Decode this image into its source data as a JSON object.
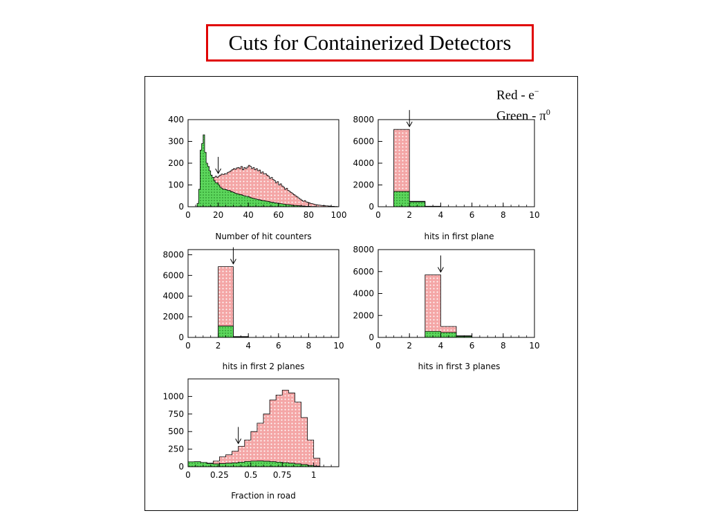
{
  "title": "Cuts for Containerized Detectors",
  "legend": {
    "red_label": "Red - e",
    "red_sup": "−",
    "green_label": "Green - π",
    "green_sup": "0"
  },
  "colors": {
    "red_fill": "#f4a6a6",
    "green_fill": "#5cd65c",
    "title_border": "#e00000"
  },
  "chart_data": [
    {
      "type": "bar",
      "xlabel": "Number of hit counters",
      "xlim": [
        0,
        100
      ],
      "ylim": [
        0,
        400
      ],
      "xticks": [
        0,
        20,
        40,
        60,
        80,
        100
      ],
      "yticks": [
        0,
        100,
        200,
        300,
        400
      ],
      "cut": 20,
      "bin_edges_start": 0,
      "bin_width": 1,
      "series": [
        {
          "color": "red",
          "values": [
            0,
            0,
            0,
            0,
            0,
            0,
            5,
            25,
            70,
            125,
            150,
            155,
            150,
            140,
            135,
            130,
            125,
            135,
            140,
            135,
            140,
            145,
            150,
            148,
            152,
            150,
            158,
            160,
            165,
            170,
            175,
            172,
            178,
            180,
            175,
            185,
            170,
            180,
            175,
            182,
            190,
            185,
            175,
            180,
            170,
            175,
            165,
            168,
            155,
            160,
            150,
            152,
            145,
            140,
            130,
            135,
            125,
            120,
            110,
            115,
            100,
            105,
            95,
            90,
            80,
            85,
            75,
            70,
            65,
            60,
            55,
            50,
            45,
            40,
            35,
            30,
            25,
            28,
            22,
            20,
            18,
            15,
            14,
            12,
            10,
            9,
            8,
            7,
            6,
            5,
            5,
            4,
            4,
            3,
            3,
            2,
            2,
            1,
            1,
            0
          ]
        },
        {
          "color": "green",
          "values": [
            0,
            0,
            0,
            0,
            0,
            0,
            15,
            80,
            260,
            290,
            330,
            250,
            200,
            185,
            165,
            145,
            135,
            120,
            110,
            110,
            100,
            90,
            85,
            80,
            80,
            78,
            75,
            75,
            70,
            68,
            65,
            62,
            60,
            58,
            56,
            55,
            52,
            50,
            48,
            48,
            45,
            42,
            40,
            38,
            36,
            35,
            33,
            32,
            30,
            28,
            28,
            26,
            25,
            24,
            22,
            20,
            20,
            18,
            17,
            16,
            15,
            14,
            13,
            12,
            11,
            10,
            10,
            9,
            8,
            7,
            6,
            6,
            5,
            5,
            4,
            4,
            3,
            3,
            2,
            2,
            2,
            1,
            1,
            1,
            1,
            0,
            0,
            0,
            0,
            0,
            0,
            0,
            0,
            0,
            0,
            0,
            0,
            0,
            0,
            0
          ]
        }
      ]
    },
    {
      "type": "bar",
      "xlabel": "hits in first plane",
      "xlim": [
        0,
        10
      ],
      "ylim": [
        0,
        8000
      ],
      "xticks": [
        0,
        2,
        4,
        6,
        8,
        10
      ],
      "yticks": [
        0,
        2000,
        4000,
        6000,
        8000
      ],
      "cut": 2,
      "bin_edges_start": 0,
      "bin_width": 1,
      "series": [
        {
          "color": "red",
          "values": [
            0,
            7100,
            500,
            50,
            0,
            0,
            0,
            0,
            0,
            0
          ]
        },
        {
          "color": "green",
          "values": [
            0,
            1400,
            450,
            40,
            0,
            0,
            0,
            0,
            0,
            0
          ]
        }
      ]
    },
    {
      "type": "bar",
      "xlabel": "hits in first 2 planes",
      "xlim": [
        0,
        10
      ],
      "ylim": [
        0,
        8500
      ],
      "xticks": [
        0,
        2,
        4,
        6,
        8,
        10
      ],
      "yticks": [
        0,
        2000,
        4000,
        6000,
        8000
      ],
      "cut": 3,
      "bin_edges_start": 0,
      "bin_width": 1,
      "series": [
        {
          "color": "red",
          "values": [
            0,
            0,
            6850,
            80,
            0,
            0,
            0,
            0,
            0,
            0
          ]
        },
        {
          "color": "green",
          "values": [
            0,
            0,
            1100,
            60,
            0,
            0,
            0,
            0,
            0,
            0
          ]
        }
      ]
    },
    {
      "type": "bar",
      "xlabel": "hits in first 3 planes",
      "xlim": [
        0,
        10
      ],
      "ylim": [
        0,
        8000
      ],
      "xticks": [
        0,
        2,
        4,
        6,
        8,
        10
      ],
      "yticks": [
        0,
        2000,
        4000,
        6000,
        8000
      ],
      "cut": 4,
      "bin_edges_start": 0,
      "bin_width": 1,
      "series": [
        {
          "color": "red",
          "values": [
            0,
            0,
            0,
            5700,
            1000,
            150,
            0,
            0,
            0,
            0
          ]
        },
        {
          "color": "green",
          "values": [
            0,
            0,
            0,
            550,
            450,
            100,
            0,
            0,
            0,
            0
          ]
        }
      ]
    },
    {
      "type": "bar",
      "xlabel": "Fraction in road",
      "xlim": [
        0,
        1.2
      ],
      "ylim": [
        0,
        1250
      ],
      "xticks": [
        0,
        0.25,
        0.5,
        0.75,
        1
      ],
      "yticks": [
        0,
        250,
        500,
        750,
        1000
      ],
      "ytick_labels": [
        "0",
        "250",
        "500",
        "750",
        "1000"
      ],
      "cut": 0.4,
      "bin_edges_start": 0,
      "bin_width": 0.05,
      "series": [
        {
          "color": "red",
          "values": [
            60,
            65,
            60,
            50,
            80,
            140,
            170,
            220,
            290,
            380,
            500,
            620,
            750,
            950,
            1020,
            1090,
            1050,
            920,
            700,
            380,
            120,
            0,
            0,
            0
          ]
        },
        {
          "color": "green",
          "values": [
            70,
            72,
            60,
            45,
            40,
            45,
            50,
            55,
            65,
            75,
            80,
            82,
            78,
            72,
            65,
            58,
            50,
            40,
            30,
            18,
            8,
            0,
            0,
            0
          ]
        }
      ]
    }
  ]
}
